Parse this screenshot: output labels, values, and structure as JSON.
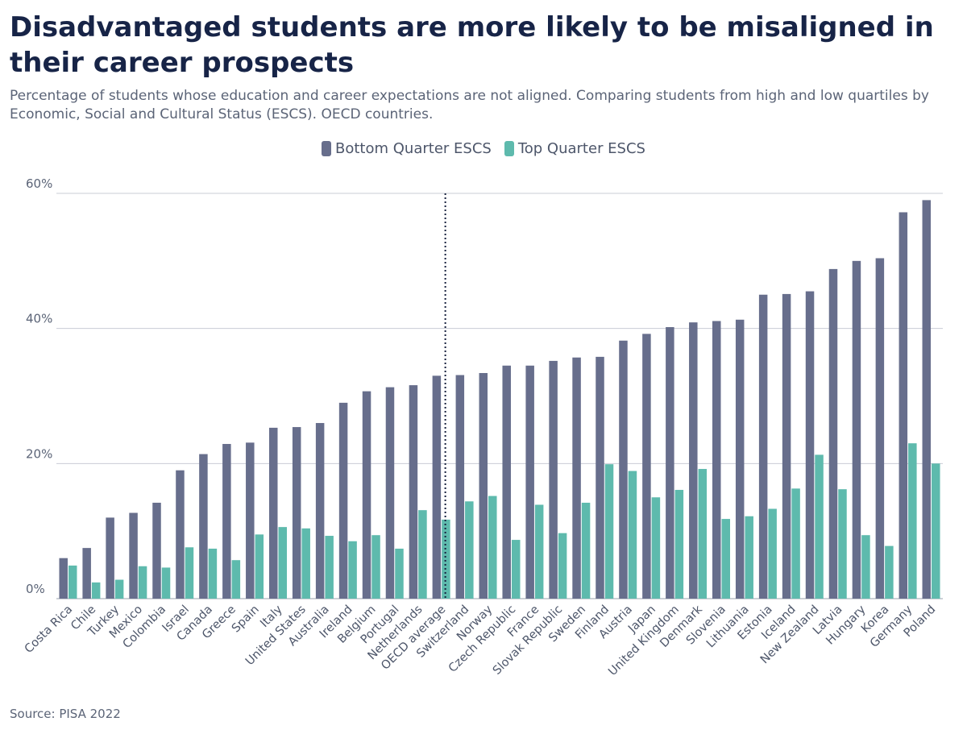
{
  "title": "Disadvantaged students are more likely to be misaligned in their career prospects",
  "subtitle": "Percentage of students whose education and career expectations are not aligned. Comparing students from high and low quartiles by Economic, Social and Cultural Status (ESCS). OECD countries.",
  "source": "Source: PISA 2022",
  "colors": {
    "bottom": "#676e8c",
    "top": "#5ebaad",
    "grid": "#c9ccd4"
  },
  "chart_data": {
    "type": "bar",
    "title": "Disadvantaged students are more likely to be misaligned in their career prospects",
    "xlabel": "",
    "ylabel": "",
    "ylim": [
      0,
      60
    ],
    "yticks": [
      "0%",
      "20%",
      "40%",
      "60%"
    ],
    "grid": true,
    "legend_position": "top-center",
    "reference_line": "OECD average",
    "categories": [
      "Costa Rica",
      "Chile",
      "Turkey",
      "Mexico",
      "Colombia",
      "Israel",
      "Canada",
      "Greece",
      "Spain",
      "Italy",
      "United States",
      "Australia",
      "Ireland",
      "Belgium",
      "Portugal",
      "Netherlands",
      "OECD average",
      "Switzerland",
      "Norway",
      "Czech Republic",
      "France",
      "Slovak Republic",
      "Sweden",
      "Finland",
      "Austria",
      "Japan",
      "United Kingdom",
      "Denmark",
      "Slovenia",
      "Lithuania",
      "Estonia",
      "Iceland",
      "New Zealand",
      "Latvia",
      "Hungary",
      "Korea",
      "Germany",
      "Poland"
    ],
    "series": [
      {
        "name": "Bottom Quarter ESCS",
        "values": [
          6.0,
          7.5,
          12.0,
          12.7,
          14.2,
          19.0,
          21.4,
          22.9,
          23.1,
          25.3,
          25.4,
          26.0,
          29.0,
          30.7,
          31.3,
          31.6,
          33.0,
          33.1,
          33.4,
          34.5,
          34.5,
          35.2,
          35.7,
          35.8,
          38.2,
          39.2,
          40.2,
          40.9,
          41.1,
          41.3,
          45.0,
          45.1,
          45.5,
          48.8,
          50.0,
          50.4,
          57.2,
          59.0
        ]
      },
      {
        "name": "Top Quarter ESCS",
        "values": [
          4.9,
          2.4,
          2.8,
          4.8,
          4.6,
          7.6,
          7.4,
          5.7,
          9.5,
          10.6,
          10.4,
          9.3,
          8.5,
          9.4,
          7.4,
          13.1,
          11.7,
          14.4,
          15.2,
          8.7,
          13.9,
          9.7,
          14.2,
          19.9,
          18.9,
          15.0,
          16.1,
          19.2,
          11.8,
          12.2,
          13.3,
          16.3,
          21.3,
          16.2,
          9.4,
          7.8,
          23.0,
          20.0
        ]
      }
    ]
  }
}
